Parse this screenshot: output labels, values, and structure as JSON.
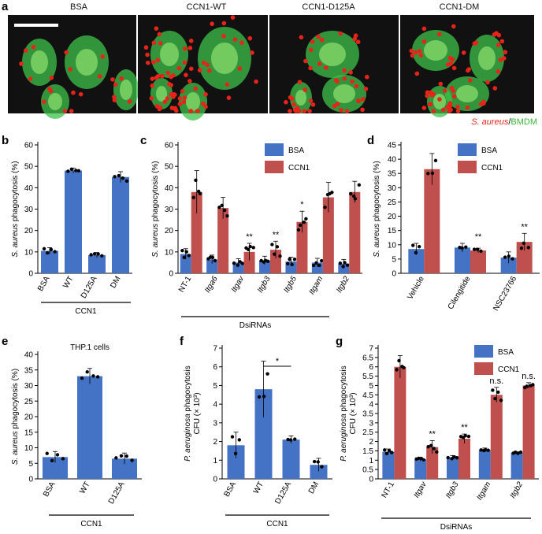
{
  "figure": {
    "panel_letters": [
      "a",
      "b",
      "c",
      "d",
      "e",
      "f",
      "g"
    ],
    "micrographs": {
      "labels": [
        "BSA",
        "CCN1-WT",
        "CCN1-D125A",
        "CCN1-DM"
      ],
      "caption_red": "S. aureus",
      "caption_sep": "/",
      "caption_green": "BMDM",
      "colors": {
        "background": "#111111",
        "cell": "#3fc24a",
        "bacteria": "#e8231a",
        "scale_bar": "#ffffff"
      }
    },
    "colors": {
      "bsa": "#4472c4",
      "ccn1": "#c0504d",
      "dot": "#000000"
    }
  },
  "chart_data": [
    {
      "panel": "b",
      "type": "bar",
      "ylabel": "S. aureus phagocytosis (%)",
      "ylabel_italic": "S. aureus",
      "ylabel_rest": " phagocytosis (%)",
      "ylim": [
        0,
        60
      ],
      "yticks": [
        0,
        10,
        20,
        30,
        40,
        50,
        60
      ],
      "categories": [
        "BSA",
        "WT",
        "D125A",
        "DM"
      ],
      "italic_categories": false,
      "series": [
        {
          "values": [
            10.5,
            48,
            8.5,
            45
          ],
          "errors": [
            1.5,
            1.2,
            1.2,
            2.5
          ],
          "color": "#4472c4"
        }
      ],
      "group_label": "CCN1"
    },
    {
      "panel": "c",
      "type": "bar",
      "ylabel": "S. aureus phagocytosis (%)",
      "ylabel_italic": "S. aureus",
      "ylabel_rest": " phagocytosis (%)",
      "ylim": [
        0,
        60
      ],
      "yticks": [
        0,
        10,
        20,
        30,
        40,
        50,
        60
      ],
      "categories": [
        "NT-1",
        "Itga6",
        "Itgav",
        "Itgb3",
        "Itgb5",
        "Itgam",
        "Itgb2"
      ],
      "italic_categories": true,
      "series": [
        {
          "name": "BSA",
          "values": [
            9,
            6.5,
            5,
            6,
            5.5,
            5,
            4.5
          ],
          "errors": [
            2.5,
            2,
            1.8,
            2,
            2,
            2,
            2
          ],
          "color": "#4472c4"
        },
        {
          "name": "CCN1",
          "values": [
            38,
            30.5,
            10,
            11,
            24,
            35.5,
            38
          ],
          "errors": [
            10,
            5,
            4,
            4,
            5,
            7,
            5
          ],
          "color": "#c0504d"
        }
      ],
      "significance": [
        "",
        "",
        "**",
        "**",
        "*",
        "",
        ""
      ],
      "group_label": "DsiRNAs",
      "legend": [
        "BSA",
        "CCN1"
      ]
    },
    {
      "panel": "d",
      "type": "bar",
      "ylabel": "S. aureus phagocytosis (%)",
      "ylabel_italic": "S. aureus",
      "ylabel_rest": " phagocytosis (%)",
      "ylim": [
        0,
        45
      ],
      "yticks": [
        0,
        5,
        10,
        15,
        20,
        25,
        30,
        35,
        40,
        45
      ],
      "categories": [
        "Vehicle",
        "Cilengitide",
        "NSC23766"
      ],
      "italic_categories": false,
      "series": [
        {
          "name": "BSA",
          "values": [
            8.5,
            9,
            5.5
          ],
          "errors": [
            2,
            1.5,
            2
          ],
          "color": "#4472c4"
        },
        {
          "name": "CCN1",
          "values": [
            36.5,
            8,
            11
          ],
          "errors": [
            5.5,
            0.8,
            3
          ],
          "color": "#c0504d"
        }
      ],
      "significance": [
        "",
        "**",
        "**"
      ],
      "legend": [
        "BSA",
        "CCN1"
      ]
    },
    {
      "panel": "e",
      "type": "bar",
      "title": "THP.1 cells",
      "ylabel": "S. aureus phagocytosis (%)",
      "ylabel_italic": "S. aureus",
      "ylabel_rest": " phagocytosis (%)",
      "ylim": [
        0,
        40
      ],
      "yticks": [
        0,
        5,
        10,
        15,
        20,
        25,
        30,
        35,
        40
      ],
      "categories": [
        "BSA",
        "WT",
        "D125A"
      ],
      "italic_categories": false,
      "series": [
        {
          "values": [
            7,
            33,
            6.5
          ],
          "errors": [
            1.8,
            2.5,
            1.8
          ],
          "color": "#4472c4"
        }
      ],
      "group_label": "CCN1"
    },
    {
      "panel": "f",
      "type": "bar",
      "ylabel_line1": "P. aeruginosa phagocytosis",
      "ylabel_line1_italic": "P. aeruginosa",
      "ylabel_line1_rest": " phagocytosis",
      "ylabel_line2": "CFU (× 10³)",
      "ylim": [
        0,
        7
      ],
      "yticks": [
        0,
        1,
        2,
        3,
        4,
        5,
        6,
        7
      ],
      "categories": [
        "BSA",
        "WT",
        "D125A",
        "DM"
      ],
      "italic_categories": false,
      "series": [
        {
          "values": [
            1.8,
            4.8,
            2.1,
            0.75
          ],
          "errors": [
            0.7,
            1.5,
            0.2,
            0.35
          ],
          "color": "#4472c4"
        }
      ],
      "bracket": {
        "from": 1,
        "to": 2,
        "label": "*"
      },
      "group_label": "CCN1"
    },
    {
      "panel": "g",
      "type": "bar",
      "ylabel_line1": "P. aeruginosa phagocytosis",
      "ylabel_line1_italic": "P. aeruginosa",
      "ylabel_line1_rest": " phagocytosis",
      "ylabel_line2": "CFU (× 10³)",
      "ylim": [
        0,
        7
      ],
      "yticks": [
        0,
        0.5,
        1,
        1.5,
        2,
        2.5,
        3,
        3.5,
        4,
        4.5,
        5,
        5.5,
        6,
        6.5,
        7
      ],
      "categories": [
        "NT-1",
        "Itgav",
        "Itgb3",
        "Itgam",
        "Itgb2"
      ],
      "italic_categories": true,
      "series": [
        {
          "name": "BSA",
          "values": [
            1.45,
            1.05,
            1.15,
            1.55,
            1.4
          ],
          "errors": [
            0.15,
            0.1,
            0.1,
            0.1,
            0.05
          ],
          "color": "#4472c4"
        },
        {
          "name": "CCN1",
          "values": [
            6,
            1.7,
            2.15,
            4.5,
            5
          ],
          "errors": [
            0.6,
            0.35,
            0.25,
            0.4,
            0.15
          ],
          "color": "#c0504d"
        }
      ],
      "significance": [
        "",
        "**",
        "**",
        "n.s.",
        "n.s."
      ],
      "group_label": "DsiRNAs",
      "legend": [
        "BSA",
        "CCN1"
      ]
    }
  ]
}
